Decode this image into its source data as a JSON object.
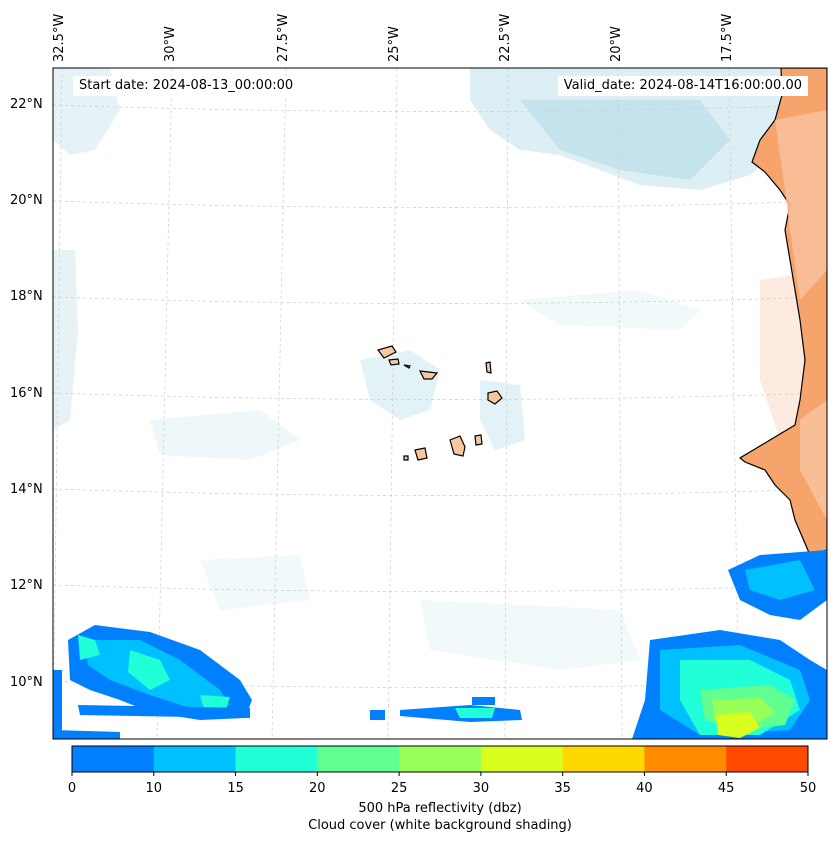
{
  "map": {
    "start_date": "Start date: 2024-08-13_00:00:00",
    "valid_date": "Valid_date: 2024-08-14T16:00:00.00",
    "lon_labels": [
      "32.5°W",
      "30°W",
      "27.5°W",
      "25°W",
      "22.5°W",
      "20°W",
      "17.5°W"
    ],
    "lat_labels": [
      "22°N",
      "20°N",
      "18°N",
      "16°N",
      "14°N",
      "12°N",
      "10°N"
    ],
    "land_color": "#f6a36c",
    "islands_color": "#f7c7a0"
  },
  "colorbar": {
    "ticks": [
      "0",
      "10",
      "15",
      "20",
      "25",
      "30",
      "35",
      "40",
      "45",
      "50"
    ],
    "colors": [
      "#0080ff",
      "#00c0ff",
      "#20ffd8",
      "#60ff90",
      "#98ff58",
      "#d8ff20",
      "#ffd800",
      "#ff8c00",
      "#ff4a00"
    ],
    "label_line1": "500 hPa reflectivity (dbz)",
    "label_line2": "Cloud cover (white background shading)"
  }
}
